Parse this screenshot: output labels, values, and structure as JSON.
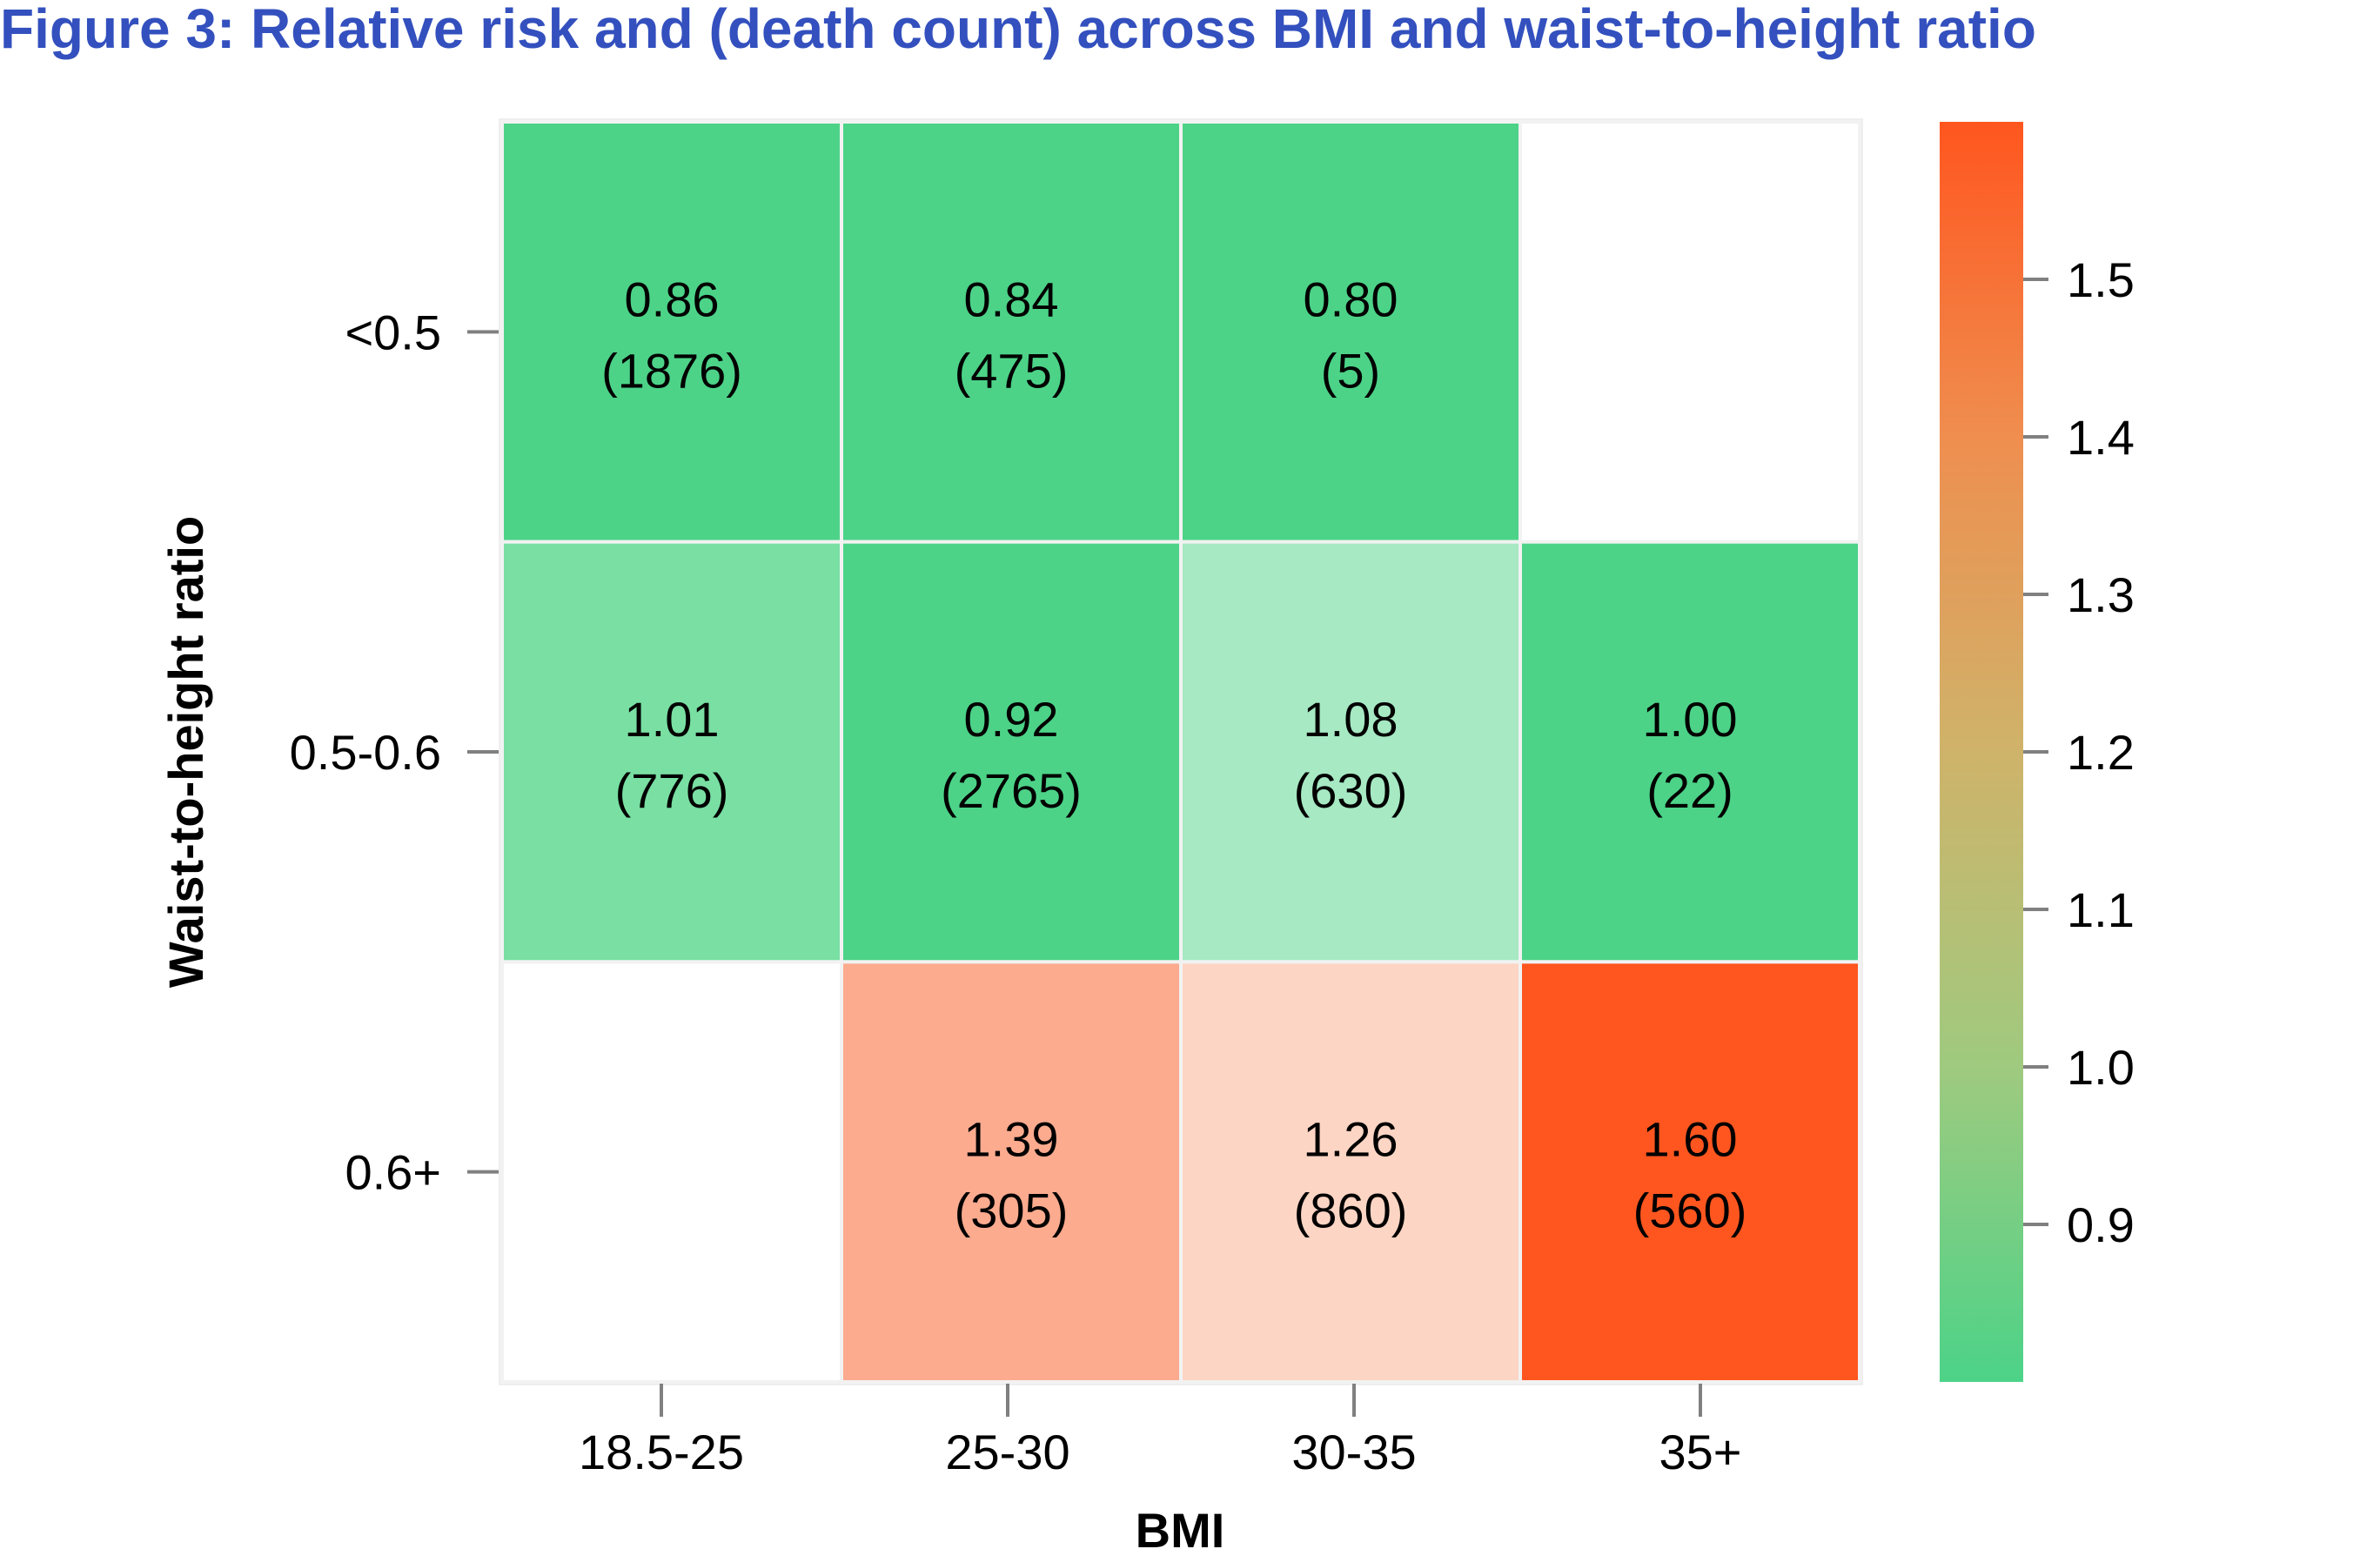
{
  "chart_data": {
    "type": "heatmap",
    "title": "Figure 3: Relative risk and (death count) across BMI and waist-to-height ratio",
    "xlabel": "BMI",
    "ylabel": "Waist-to-height ratio",
    "x_categories": [
      "18.5-25",
      "25-30",
      "30-35",
      "35+"
    ],
    "y_categories": [
      "<0.5",
      "0.5-0.6",
      "0.6+"
    ],
    "cells": [
      {
        "x": "18.5-25",
        "y": "<0.5",
        "value": 0.86,
        "value_label": "0.86",
        "count": 1876,
        "count_label": "(1876)",
        "color": "#4cd388"
      },
      {
        "x": "25-30",
        "y": "<0.5",
        "value": 0.84,
        "value_label": "0.84",
        "count": 475,
        "count_label": "(475)",
        "color": "#4cd388"
      },
      {
        "x": "30-35",
        "y": "<0.5",
        "value": 0.8,
        "value_label": "0.80",
        "count": 5,
        "count_label": "(5)",
        "color": "#4cd388"
      },
      {
        "x": "35+",
        "y": "<0.5",
        "value": null,
        "value_label": "",
        "count": null,
        "count_label": "",
        "color": "#ffffff"
      },
      {
        "x": "18.5-25",
        "y": "0.5-0.6",
        "value": 1.01,
        "value_label": "1.01",
        "count": 776,
        "count_label": "(776)",
        "color": "#79dfa3"
      },
      {
        "x": "25-30",
        "y": "0.5-0.6",
        "value": 0.92,
        "value_label": "0.92",
        "count": 2765,
        "count_label": "(2765)",
        "color": "#4cd388"
      },
      {
        "x": "30-35",
        "y": "0.5-0.6",
        "value": 1.08,
        "value_label": "1.08",
        "count": 630,
        "count_label": "(630)",
        "color": "#a6e9c3"
      },
      {
        "x": "35+",
        "y": "0.5-0.6",
        "value": 1.0,
        "value_label": "1.00",
        "count": 22,
        "count_label": "(22)",
        "color": "#4cd388"
      },
      {
        "x": "18.5-25",
        "y": "0.6+",
        "value": null,
        "value_label": "",
        "count": null,
        "count_label": "",
        "color": "#ffffff"
      },
      {
        "x": "25-30",
        "y": "0.6+",
        "value": 1.39,
        "value_label": "1.39",
        "count": 305,
        "count_label": "(305)",
        "color": "#fcab8f"
      },
      {
        "x": "30-35",
        "y": "0.6+",
        "value": 1.26,
        "value_label": "1.26",
        "count": 860,
        "count_label": "(860)",
        "color": "#fdd5c4"
      },
      {
        "x": "35+",
        "y": "0.6+",
        "value": 1.6,
        "value_label": "1.60",
        "count": 560,
        "count_label": "(560)",
        "color": "#ff561f"
      }
    ],
    "colorbar": {
      "range": [
        0.8,
        1.6
      ],
      "ticks": [
        0.9,
        1.0,
        1.1,
        1.2,
        1.3,
        1.4,
        1.5
      ],
      "tick_labels": [
        "0.9",
        "1.0",
        "1.1",
        "1.2",
        "1.3",
        "1.4",
        "1.5"
      ],
      "gradient_stops": [
        {
          "value": 0.8,
          "color": "#4cd388"
        },
        {
          "value": 1.0,
          "color": "#9fca7f"
        },
        {
          "value": 1.2,
          "color": "#cfb36a"
        },
        {
          "value": 1.4,
          "color": "#ef8e4f"
        },
        {
          "value": 1.6,
          "color": "#ff561f"
        }
      ]
    },
    "legend_position": "right",
    "grid": false
  },
  "colors": {
    "title": "#3350be",
    "axis_tick": "#808080",
    "grid_border": "#eeeeee",
    "text": "#000000"
  }
}
